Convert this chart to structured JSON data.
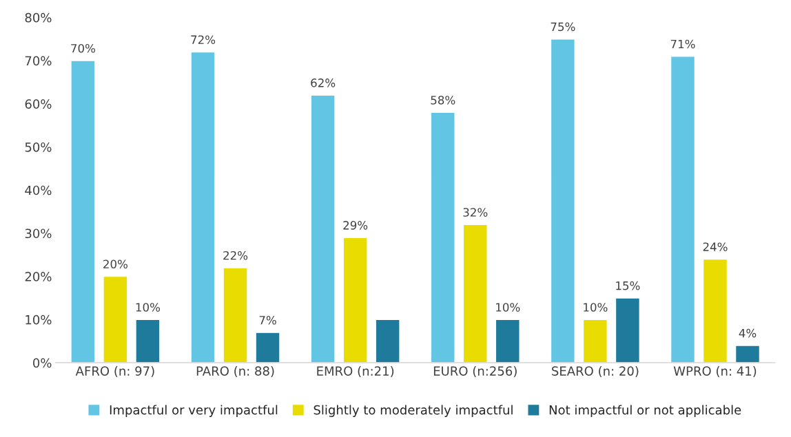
{
  "chart_data": {
    "type": "bar",
    "categories": [
      "AFRO (n: 97)",
      "PARO (n: 88)",
      "EMRO (n:21)",
      "EURO (n:256)",
      "SEARO (n: 20)",
      "WPRO (n: 41)"
    ],
    "series": [
      {
        "name": "Impactful or very impactful",
        "color": "#62c5e3",
        "values": [
          70,
          72,
          62,
          58,
          75,
          71
        ],
        "value_labels": [
          "70%",
          "72%",
          "62%",
          "58%",
          "75%",
          "71%"
        ]
      },
      {
        "name": "Slightly to moderately impactful",
        "color": "#e8dc00",
        "values": [
          20,
          22,
          29,
          32,
          10,
          24
        ],
        "value_labels": [
          "20%",
          "22%",
          "29%",
          "32%",
          "10%",
          "24%"
        ]
      },
      {
        "name": "Not impactful or not applicable",
        "color": "#1f7b9b",
        "values": [
          10,
          7,
          10,
          10,
          15,
          4
        ],
        "value_labels": [
          "10%",
          "7%",
          null,
          "10%",
          "15%",
          "4%"
        ]
      }
    ],
    "ylim": [
      0,
      80
    ],
    "yticks": [
      {
        "value": 0,
        "label": "0%"
      },
      {
        "value": 10,
        "label": "10%"
      },
      {
        "value": 20,
        "label": "20%"
      },
      {
        "value": 30,
        "label": "30%"
      },
      {
        "value": 40,
        "label": "40%"
      },
      {
        "value": 50,
        "label": "50%"
      },
      {
        "value": 60,
        "label": "60%"
      },
      {
        "value": 70,
        "label": "70%"
      },
      {
        "value": 80,
        "label": "80%"
      }
    ],
    "grid": false,
    "legend": "bottom"
  }
}
